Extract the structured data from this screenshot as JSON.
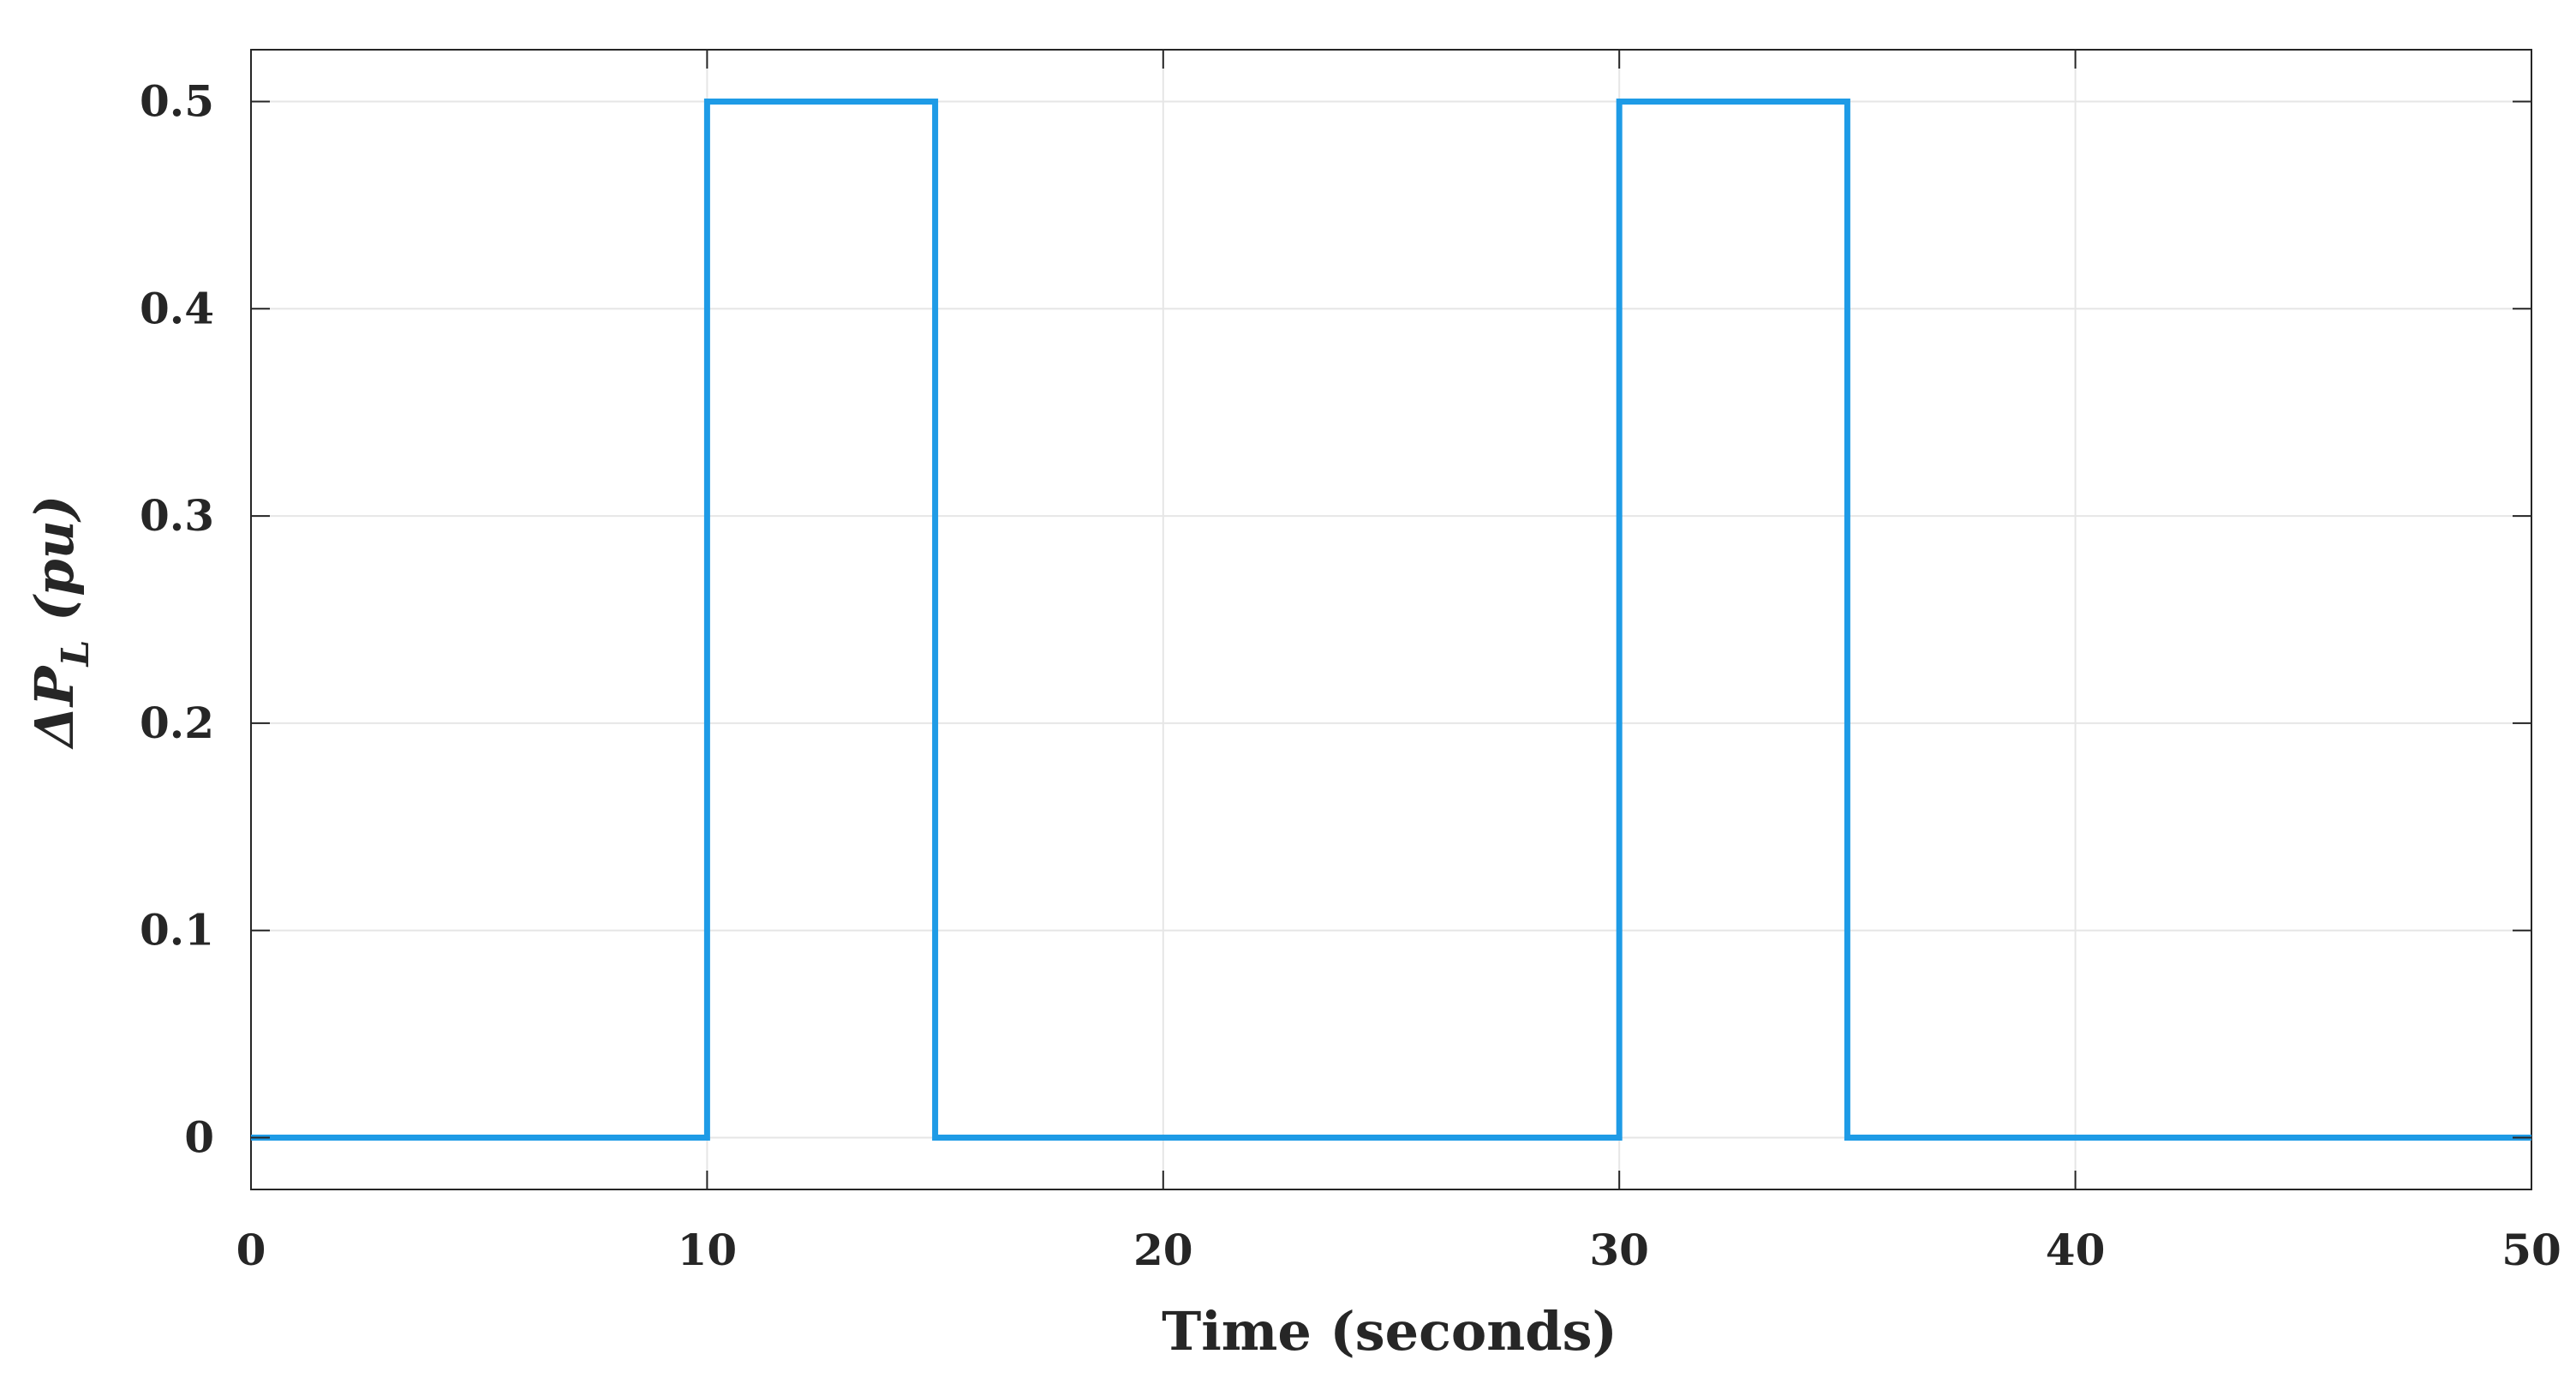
{
  "chart_data": {
    "type": "line",
    "step": true,
    "title": "",
    "xlabel": "Time (seconds)",
    "ylabel": {
      "prefix": "ΔP",
      "subscript": "L",
      "suffix": " (pu)"
    },
    "xlim": [
      0,
      50
    ],
    "ylim": [
      -0.025,
      0.525
    ],
    "xticks": [
      0,
      10,
      20,
      30,
      40,
      50
    ],
    "xtick_labels": [
      "0",
      "10",
      "20",
      "30",
      "40",
      "50"
    ],
    "yticks": [
      0,
      0.1,
      0.2,
      0.3,
      0.4,
      0.5
    ],
    "ytick_labels": [
      "0",
      "0.1",
      "0.2",
      "0.3",
      "0.4",
      "0.5"
    ],
    "grid": true,
    "legend": false,
    "colors": {
      "line": "#1e9be6",
      "axis": "#262626",
      "grid": "#e6e6e6"
    },
    "series": [
      {
        "x": [
          0,
          10,
          10,
          15,
          15,
          30,
          30,
          35,
          35,
          50
        ],
        "y": [
          0,
          0,
          0.5,
          0.5,
          0,
          0,
          0.5,
          0.5,
          0,
          0
        ]
      }
    ]
  }
}
